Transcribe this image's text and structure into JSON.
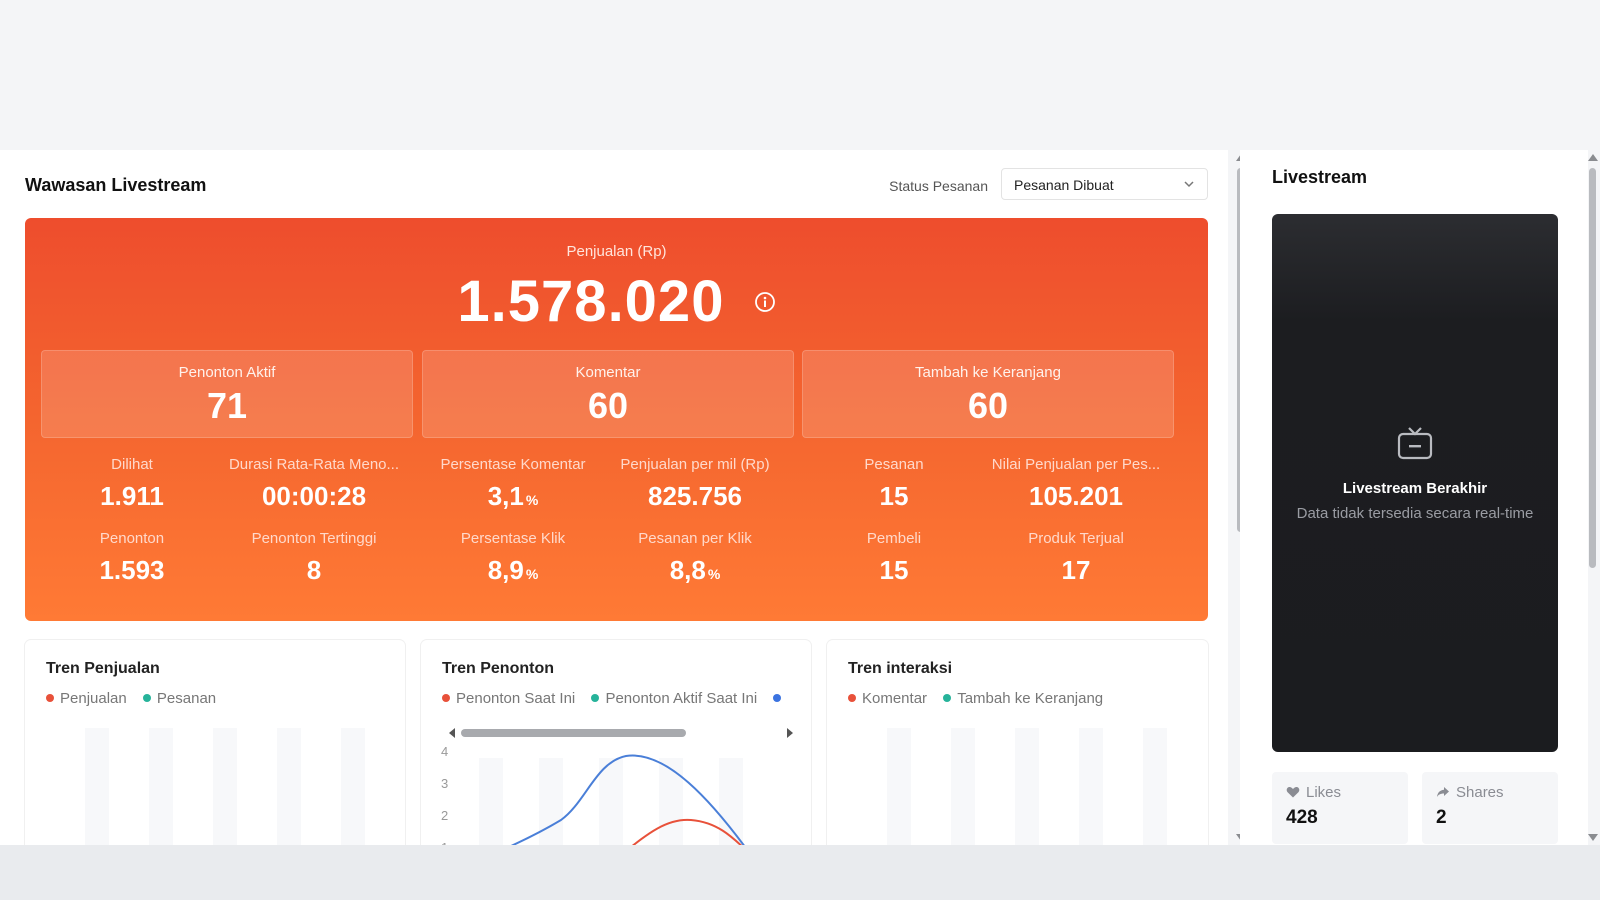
{
  "main": {
    "title": "Wawasan Livestream",
    "status_label": "Status Pesanan",
    "status_value": "Pesanan Dibuat"
  },
  "hero": {
    "label": "Penjualan (Rp)",
    "value": "1.578.020",
    "stats": [
      {
        "label": "Penonton Aktif",
        "value": "71"
      },
      {
        "label": "Komentar",
        "value": "60"
      },
      {
        "label": "Tambah ke Keranjang",
        "value": "60"
      }
    ],
    "metrics": [
      {
        "label": "Dilihat",
        "value": "1.911",
        "unit": ""
      },
      {
        "label": "Durasi Rata-Rata Meno...",
        "value": "00:00:28",
        "unit": ""
      },
      {
        "label": "Persentase Komentar",
        "value": "3,1",
        "unit": "%"
      },
      {
        "label": "Penjualan per mil (Rp)",
        "value": "825.756",
        "unit": ""
      },
      {
        "label": "Pesanan",
        "value": "15",
        "unit": ""
      },
      {
        "label": "Nilai Penjualan per Pes...",
        "value": "105.201",
        "unit": ""
      },
      {
        "label": "Penonton",
        "value": "1.593",
        "unit": ""
      },
      {
        "label": "Penonton Tertinggi",
        "value": "8",
        "unit": ""
      },
      {
        "label": "Persentase Klik",
        "value": "8,9",
        "unit": "%"
      },
      {
        "label": "Pesanan per Klik",
        "value": "8,8",
        "unit": "%"
      },
      {
        "label": "Pembeli",
        "value": "15",
        "unit": ""
      },
      {
        "label": "Produk Terjual",
        "value": "17",
        "unit": ""
      }
    ]
  },
  "trends": [
    {
      "title": "Tren Penjualan",
      "legend": [
        {
          "name": "Penjualan",
          "color": "#e8513a"
        },
        {
          "name": "Pesanan",
          "color": "#26b39a"
        }
      ]
    },
    {
      "title": "Tren Penonton",
      "legend": [
        {
          "name": "Penonton Saat Ini",
          "color": "#e8513a"
        },
        {
          "name": "Penonton Aktif Saat Ini",
          "color": "#26b39a"
        },
        {
          "name": "",
          "color": "#3b73e0"
        }
      ]
    },
    {
      "title": "Tren interaksi",
      "legend": [
        {
          "name": "Komentar",
          "color": "#e8513a"
        },
        {
          "name": "Tambah ke Keranjang",
          "color": "#26b39a"
        }
      ]
    }
  ],
  "viewer_chart": {
    "y_ticks": [
      "4",
      "3",
      "2",
      "1"
    ]
  },
  "right": {
    "title": "Livestream",
    "ended_title": "Livestream Berakhir",
    "ended_msg": "Data tidak tersedia secara real-time",
    "likes_label": "Likes",
    "likes_value": "428",
    "shares_label": "Shares",
    "shares_value": "2"
  },
  "colors": {
    "accent": "#ee4d2d",
    "accent_end": "#ff7a35",
    "line_blue": "#4a7fd8",
    "line_red": "#e8513a"
  }
}
